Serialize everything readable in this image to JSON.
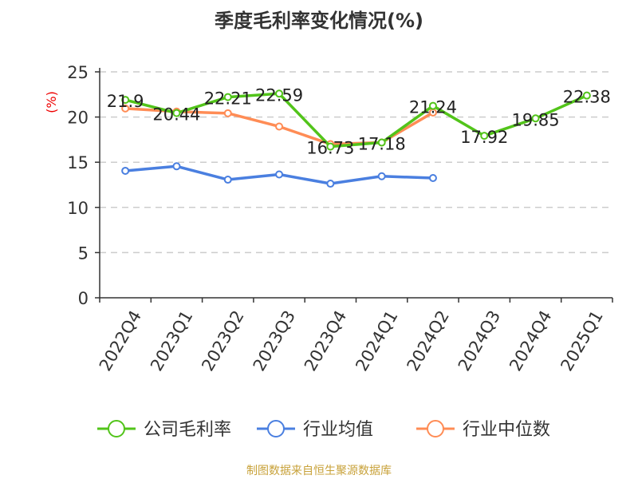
{
  "chart_data": {
    "type": "line",
    "title": "季度毛利率变化情况(%)",
    "ylabel": "(%)",
    "xlabel": "",
    "ylim": [
      0,
      25
    ],
    "yticks": [
      0,
      5,
      10,
      15,
      20,
      25
    ],
    "grid": true,
    "legend_position": "bottom",
    "categories": [
      "2022Q4",
      "2023Q1",
      "2023Q2",
      "2023Q3",
      "2023Q4",
      "2024Q1",
      "2024Q2",
      "2024Q3",
      "2024Q4",
      "2025Q1"
    ],
    "series": [
      {
        "name": "公司毛利率",
        "color": "#52c41a",
        "labeled": true,
        "values": [
          21.9,
          20.44,
          22.21,
          22.59,
          16.73,
          17.18,
          21.24,
          17.92,
          19.85,
          22.38
        ]
      },
      {
        "name": "行业均值",
        "color": "#4a7fe0",
        "labeled": false,
        "values": [
          14.05,
          14.55,
          13.07,
          13.65,
          12.63,
          13.45,
          13.25,
          null,
          null,
          null
        ]
      },
      {
        "name": "行业中位数",
        "color": "#ff8c55",
        "labeled": false,
        "values": [
          20.95,
          20.6,
          20.42,
          18.95,
          17.0,
          17.18,
          20.5,
          null,
          null,
          null
        ]
      }
    ]
  },
  "footer": "制图数据来自恒生聚源数据库"
}
